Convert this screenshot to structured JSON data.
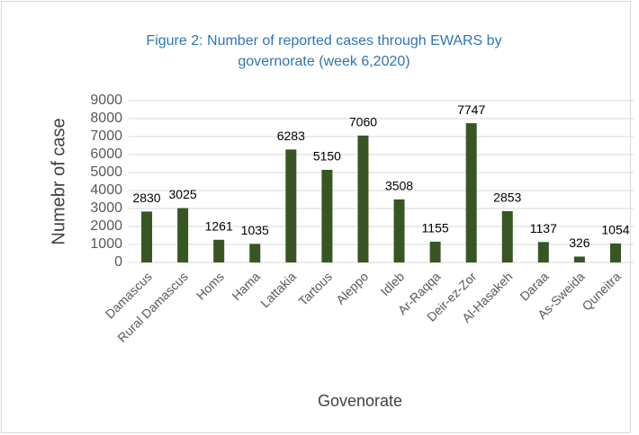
{
  "chart_data": {
    "type": "bar",
    "title": "Figure 2: Number of reported cases through EWARS by governorate (week 6,2020)",
    "x_label": "Govenorate",
    "y_label": "Numebr of case",
    "categories": [
      "Damascus",
      "Rural Damascus",
      "Homs",
      "Hama",
      "Lattakia",
      "Tartous",
      "Aleppo",
      "Idleb",
      "Ar-Raqqa",
      "Deir-ez-Zor",
      "Al-Hasakeh",
      "Daraa",
      "As-Sweida",
      "Quneitra"
    ],
    "values": [
      2830,
      3025,
      1261,
      1035,
      6283,
      5150,
      7060,
      3508,
      1155,
      7747,
      2853,
      1137,
      326,
      1054
    ],
    "color": "#375623",
    "ylim": [
      0,
      9000
    ],
    "yticks": [
      0,
      1000,
      2000,
      3000,
      4000,
      5000,
      6000,
      7000,
      8000,
      9000
    ],
    "grid": true
  }
}
